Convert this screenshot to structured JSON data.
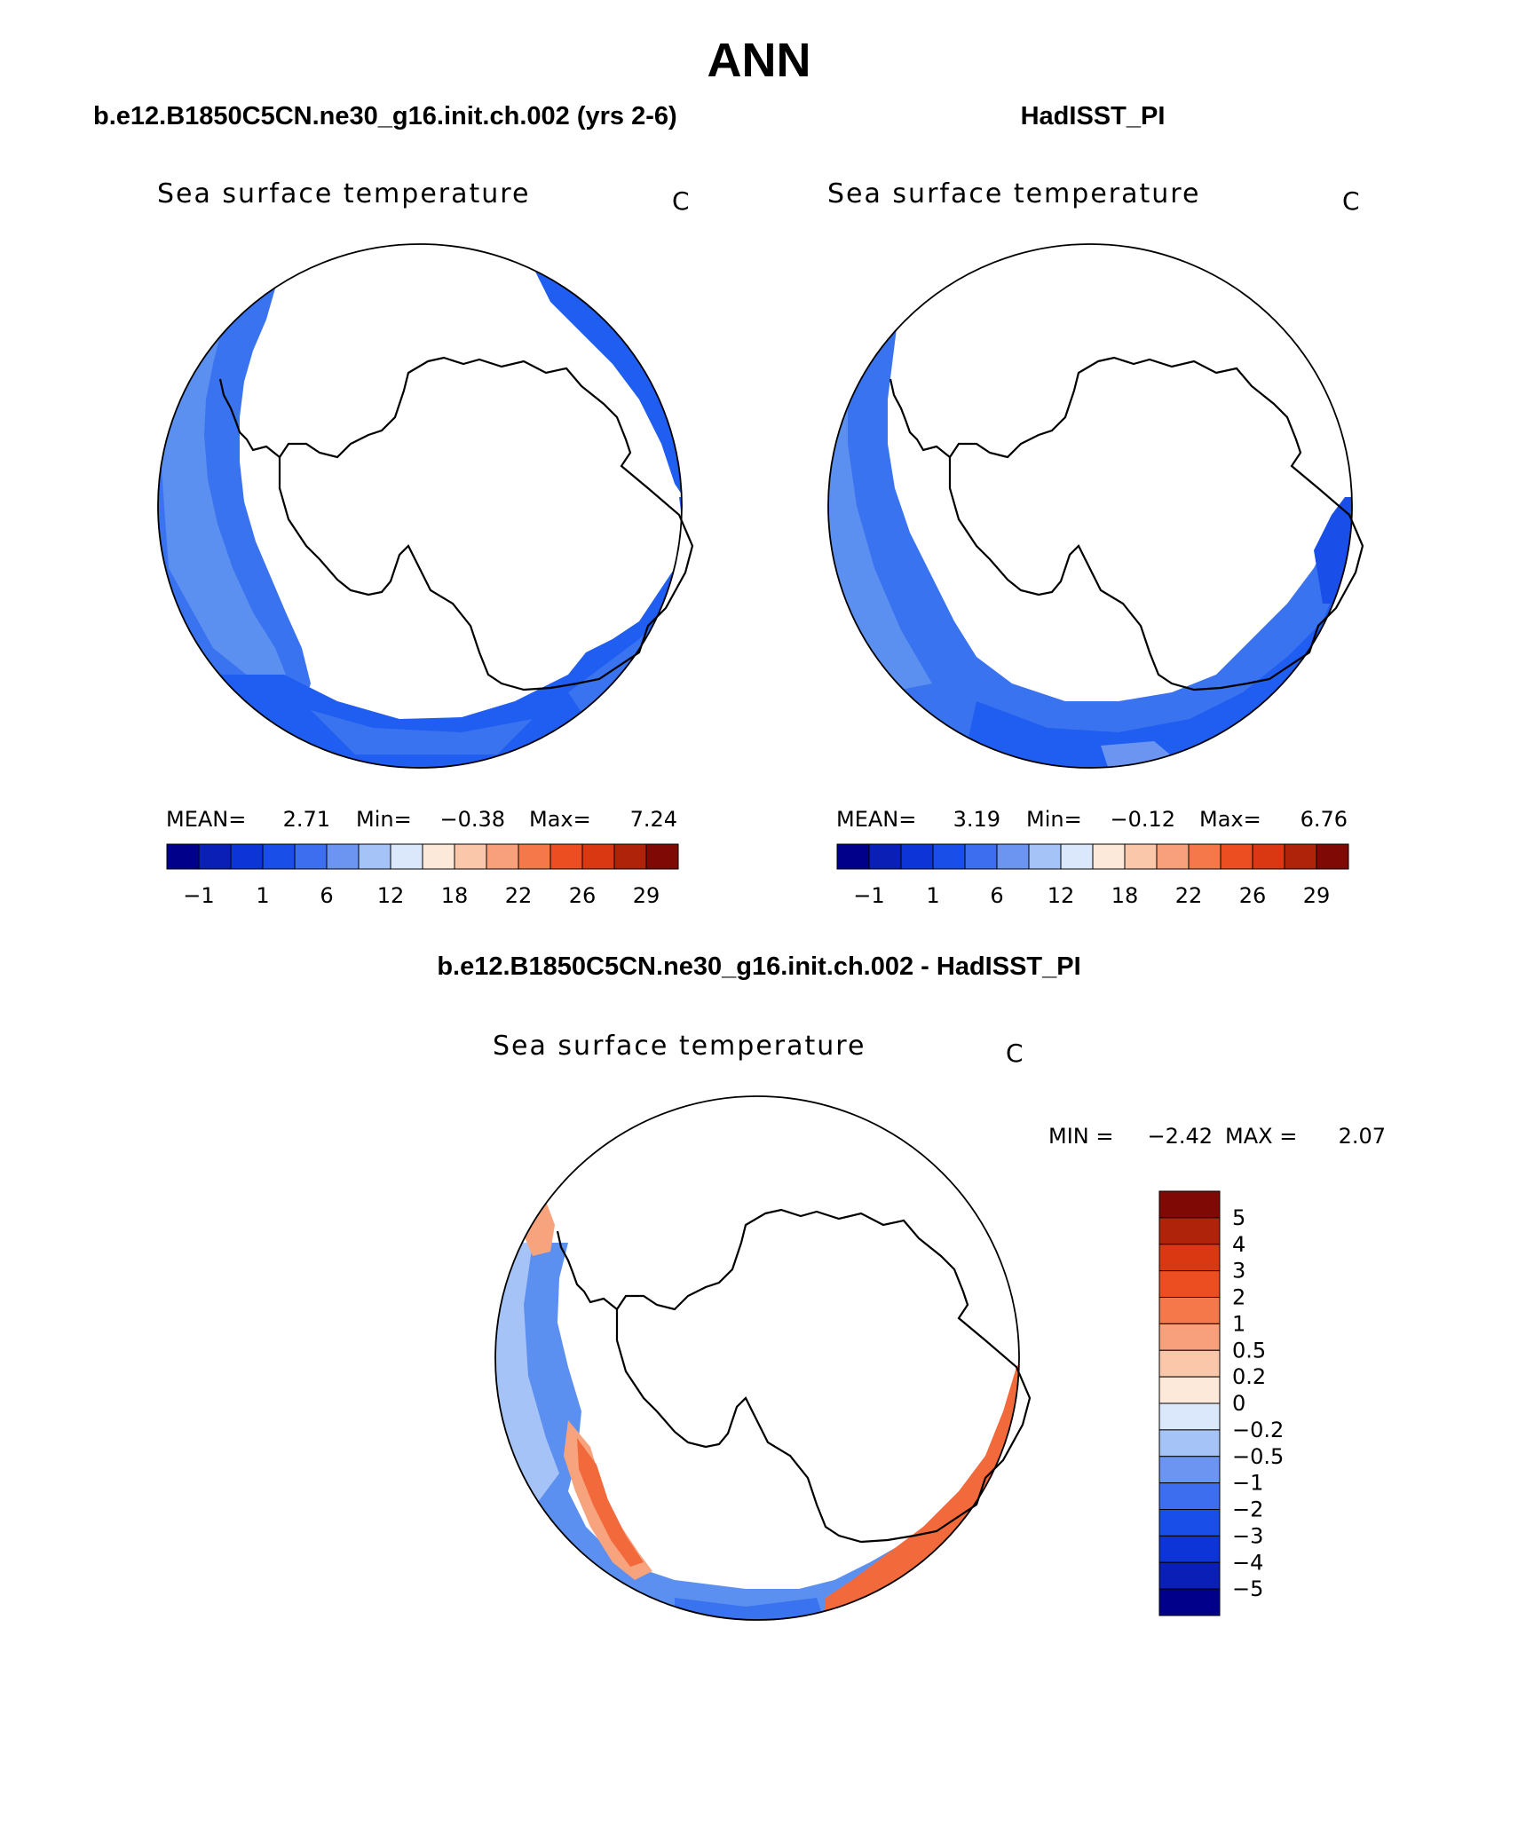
{
  "page_title": "ANN",
  "colors": {
    "map_ocean_blue": "#1f5ef0",
    "map_ocean_mid": "#3a73f0",
    "map_ocean_light": "#5b8ff0",
    "diff_red": "#f26a3c",
    "diff_light_red": "#f7a47e",
    "outline": "#000000"
  },
  "chart_data": [
    {
      "type": "heatmap",
      "panel": "left",
      "case_title": "b.e12.B1850C5CN.ne30_g16.init.ch.002 (yrs 2-6)",
      "title": "Sea surface temperature",
      "units": "C",
      "stats": {
        "mean_label": "MEAN=",
        "mean": "2.71",
        "min_label": "Min=",
        "min": "−0.38",
        "max_label": "Max=",
        "max": "7.24"
      },
      "colorbar": {
        "tick_labels": [
          "−1",
          "1",
          "6",
          "12",
          "18",
          "22",
          "26",
          "29"
        ],
        "colors": [
          "#00008b",
          "#0a1fb5",
          "#0d34d6",
          "#1a4ee8",
          "#3d6ef0",
          "#6c95f2",
          "#a6c3f7",
          "#dbe8fb",
          "#fde9da",
          "#fbc7ab",
          "#f8a07c",
          "#f47849",
          "#ec4e22",
          "#d93812",
          "#b0230b",
          "#7f0a05"
        ]
      }
    },
    {
      "type": "heatmap",
      "panel": "right",
      "case_title": "HadISST_PI",
      "title": "Sea surface temperature",
      "units": "C",
      "stats": {
        "mean_label": "MEAN=",
        "mean": "3.19",
        "min_label": "Min=",
        "min": "−0.12",
        "max_label": "Max=",
        "max": "6.76"
      },
      "colorbar": {
        "tick_labels": [
          "−1",
          "1",
          "6",
          "12",
          "18",
          "22",
          "26",
          "29"
        ],
        "colors": [
          "#00008b",
          "#0a1fb5",
          "#0d34d6",
          "#1a4ee8",
          "#3d6ef0",
          "#6c95f2",
          "#a6c3f7",
          "#dbe8fb",
          "#fde9da",
          "#fbc7ab",
          "#f8a07c",
          "#f47849",
          "#ec4e22",
          "#d93812",
          "#b0230b",
          "#7f0a05"
        ]
      }
    },
    {
      "type": "heatmap",
      "panel": "difference",
      "case_title": "b.e12.B1850C5CN.ne30_g16.init.ch.002 - HadISST_PI",
      "title": "Sea surface temperature",
      "units": "C",
      "stats": {
        "min_label": "MIN =",
        "min": "−2.42",
        "max_label": "MAX =",
        "max": "2.07"
      },
      "colorbar": {
        "tick_labels": [
          "5",
          "4",
          "3",
          "2",
          "1",
          "0.5",
          "0.2",
          "0",
          "−0.2",
          "−0.5",
          "−1",
          "−2",
          "−3",
          "−4",
          "−5"
        ],
        "colors": [
          "#7f0a05",
          "#b0230b",
          "#d93812",
          "#ec4e22",
          "#f47849",
          "#f8a07c",
          "#fbc7ab",
          "#fde9da",
          "#dbe8fb",
          "#a6c3f7",
          "#6c95f2",
          "#3d6ef0",
          "#1a4ee8",
          "#0d34d6",
          "#0a1fb5",
          "#00008b"
        ]
      }
    }
  ]
}
